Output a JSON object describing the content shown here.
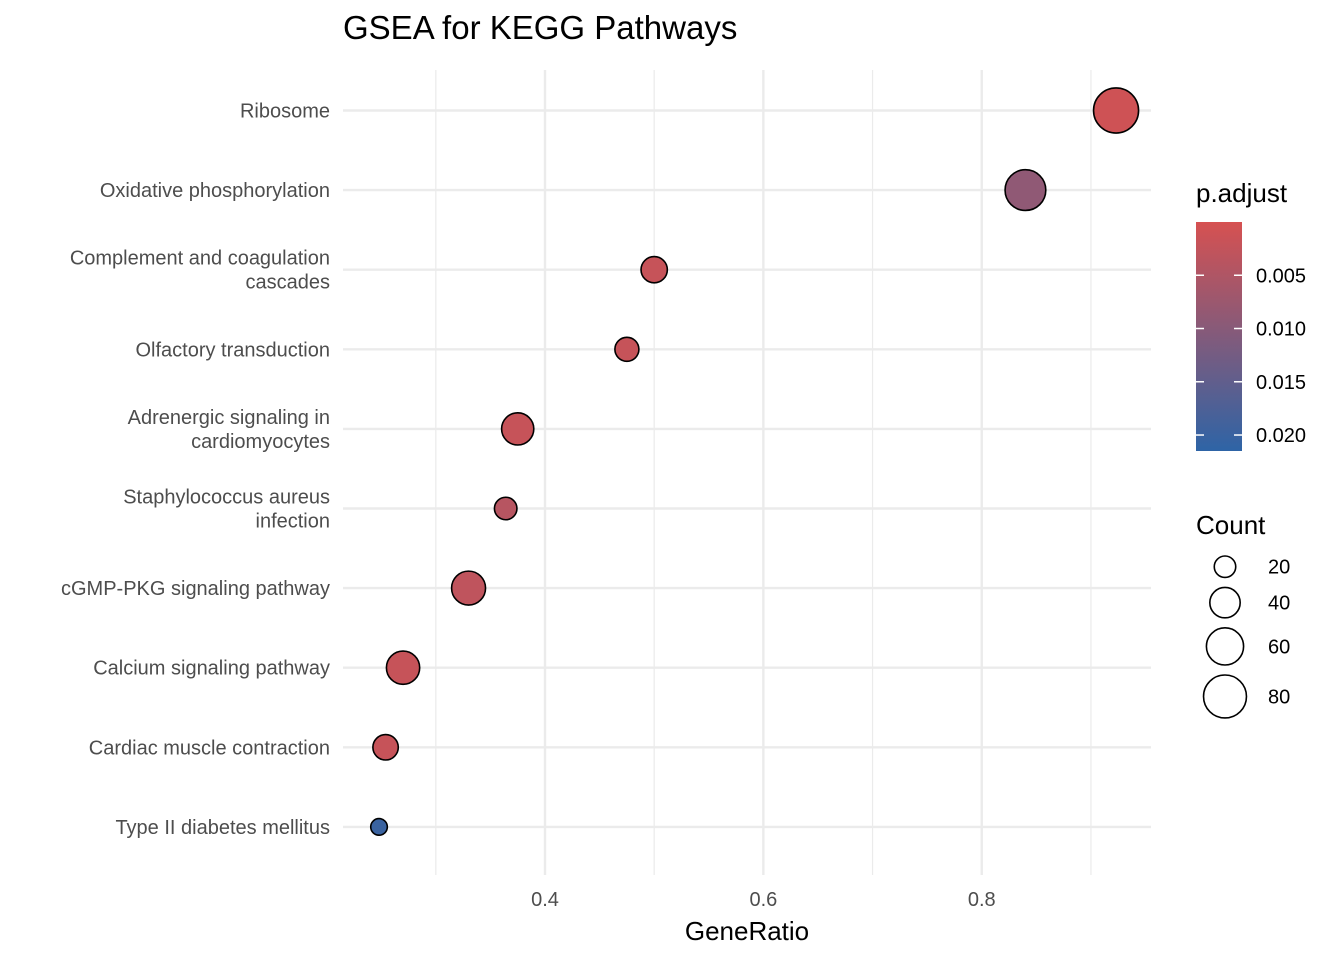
{
  "chart_data": {
    "type": "scatter",
    "title": "GSEA for KEGG Pathways",
    "xlabel": "GeneRatio",
    "ylabel": "",
    "xlim": [
      0.215,
      0.955
    ],
    "x_ticks": [
      0.4,
      0.6,
      0.8
    ],
    "x_tick_labels": [
      "0.4",
      "0.6",
      "0.8"
    ],
    "grid": true,
    "categories": [
      "Ribosome",
      "Oxidative phosphorylation",
      "Complement and coagulation\ncascades",
      "Olfactory transduction",
      "Adrenergic signaling in\ncardiomyocytes",
      "Staphylococcus aureus\ninfection",
      "cGMP-PKG signaling pathway",
      "Calcium signaling pathway",
      "Cardiac muscle contraction",
      "Type II diabetes mellitus"
    ],
    "points": [
      {
        "category": "Ribosome",
        "x": 0.923,
        "count": 88,
        "p_adjust": 0.001
      },
      {
        "category": "Oxidative phosphorylation",
        "x": 0.84,
        "count": 72,
        "p_adjust": 0.009
      },
      {
        "category": "Complement and coagulation\ncascades",
        "x": 0.5,
        "count": 30,
        "p_adjust": 0.002
      },
      {
        "category": "Olfactory transduction",
        "x": 0.475,
        "count": 25,
        "p_adjust": 0.002
      },
      {
        "category": "Adrenergic signaling in\ncardiomyocytes",
        "x": 0.375,
        "count": 45,
        "p_adjust": 0.002
      },
      {
        "category": "Staphylococcus aureus\ninfection",
        "x": 0.364,
        "count": 22,
        "p_adjust": 0.004
      },
      {
        "category": "cGMP-PKG signaling pathway",
        "x": 0.33,
        "count": 50,
        "p_adjust": 0.003
      },
      {
        "category": "Calcium signaling pathway",
        "x": 0.27,
        "count": 48,
        "p_adjust": 0.002
      },
      {
        "category": "Cardiac muscle contraction",
        "x": 0.254,
        "count": 28,
        "p_adjust": 0.002
      },
      {
        "category": "Type II diabetes mellitus",
        "x": 0.248,
        "count": 12,
        "p_adjust": 0.02
      }
    ],
    "color_legend": {
      "title": "p.adjust",
      "range": [
        0.0,
        0.0215
      ],
      "colors": [
        "#d65151",
        "#2e64a6"
      ],
      "ticks": [
        0.005,
        0.01,
        0.015,
        0.02
      ],
      "tick_labels": [
        "0.005",
        "0.010",
        "0.015",
        "0.020"
      ]
    },
    "size_legend": {
      "title": "Count",
      "values": [
        20,
        40,
        60,
        80
      ],
      "labels": [
        "20",
        "40",
        "60",
        "80"
      ]
    }
  }
}
